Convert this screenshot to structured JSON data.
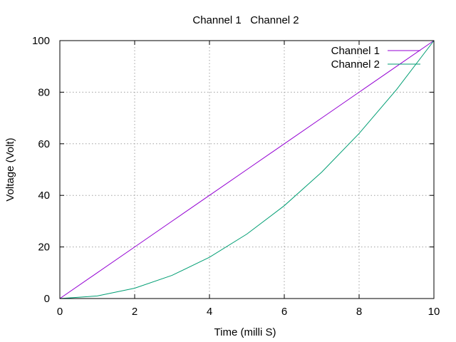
{
  "chart_data": {
    "type": "line",
    "title": "Channel 1   Channel 2",
    "xlabel": "Time (milli S)",
    "ylabel": "Voltage (Volt)",
    "xlim": [
      0,
      10
    ],
    "ylim": [
      0,
      100
    ],
    "xticks": [
      0,
      2,
      4,
      6,
      8,
      10
    ],
    "yticks": [
      0,
      20,
      40,
      60,
      80,
      100
    ],
    "grid": true,
    "legend_position": "top-right",
    "series": [
      {
        "name": "Channel 1",
        "color": "#9400d3",
        "x": [
          0,
          1,
          2,
          3,
          4,
          5,
          6,
          7,
          8,
          9,
          10
        ],
        "y": [
          0,
          10,
          20,
          30,
          40,
          50,
          60,
          70,
          80,
          90,
          100
        ]
      },
      {
        "name": "Channel 2",
        "color": "#009e73",
        "x": [
          0,
          1,
          2,
          3,
          4,
          5,
          6,
          7,
          8,
          9,
          10
        ],
        "y": [
          0,
          1,
          4,
          9,
          16,
          25,
          36,
          49,
          64,
          81,
          100
        ]
      }
    ]
  }
}
